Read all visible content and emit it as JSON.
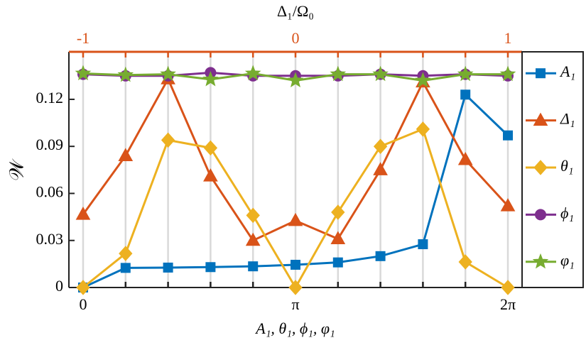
{
  "chart_data": {
    "type": "line",
    "x": [
      0,
      0.62832,
      1.25664,
      1.88496,
      2.51327,
      3.14159,
      3.76991,
      4.39823,
      5.02655,
      5.65487,
      6.28319
    ],
    "series": [
      {
        "name": "A₁",
        "color": "#0072BD",
        "marker": "square",
        "values": [
          0,
          0.0125,
          0.0127,
          0.013,
          0.0135,
          0.0145,
          0.016,
          0.02,
          0.0276,
          0.123,
          0.097
        ]
      },
      {
        "name": "Δ₁",
        "color": "#D95319",
        "marker": "triangle",
        "values": [
          0.0466,
          0.084,
          0.133,
          0.071,
          0.03,
          0.0426,
          0.031,
          0.075,
          0.131,
          0.0815,
          0.052
        ]
      },
      {
        "name": "θ₁",
        "color": "#EDB120",
        "marker": "diamond",
        "values": [
          0,
          0.0217,
          0.094,
          0.089,
          0.046,
          0,
          0.048,
          0.09,
          0.101,
          0.0163,
          0
        ]
      },
      {
        "name": "ϕ₁",
        "color": "#7E2F8E",
        "marker": "circle",
        "values": [
          0.136,
          0.135,
          0.135,
          0.137,
          0.135,
          0.135,
          0.135,
          0.136,
          0.135,
          0.136,
          0.135
        ]
      },
      {
        "name": "φ₁",
        "color": "#77AC30",
        "marker": "star",
        "values": [
          0.1365,
          0.1355,
          0.136,
          0.1327,
          0.1365,
          0.132,
          0.136,
          0.136,
          0.132,
          0.136,
          0.136
        ]
      }
    ],
    "xlim": [
      -0.21,
      6.49319
    ],
    "xticks": [
      0,
      {
        "value": 3.14159,
        "label": "π"
      },
      {
        "value": 6.28319,
        "label": "2π"
      }
    ],
    "ylim": [
      0,
      0.1503
    ],
    "yticks": [
      0,
      0.03,
      0.06,
      0.09,
      0.12
    ],
    "x2lim": [
      -1.0669,
      1.0669
    ],
    "x2ticks": [
      -1,
      0,
      1
    ],
    "x2_color": "#D95319",
    "x_label": "A₁, θ₁, ϕ₁, φ₁",
    "y_label": "𝒲",
    "x2_label": "Δ₁/Ω₀",
    "grid": true,
    "legend": "right"
  }
}
